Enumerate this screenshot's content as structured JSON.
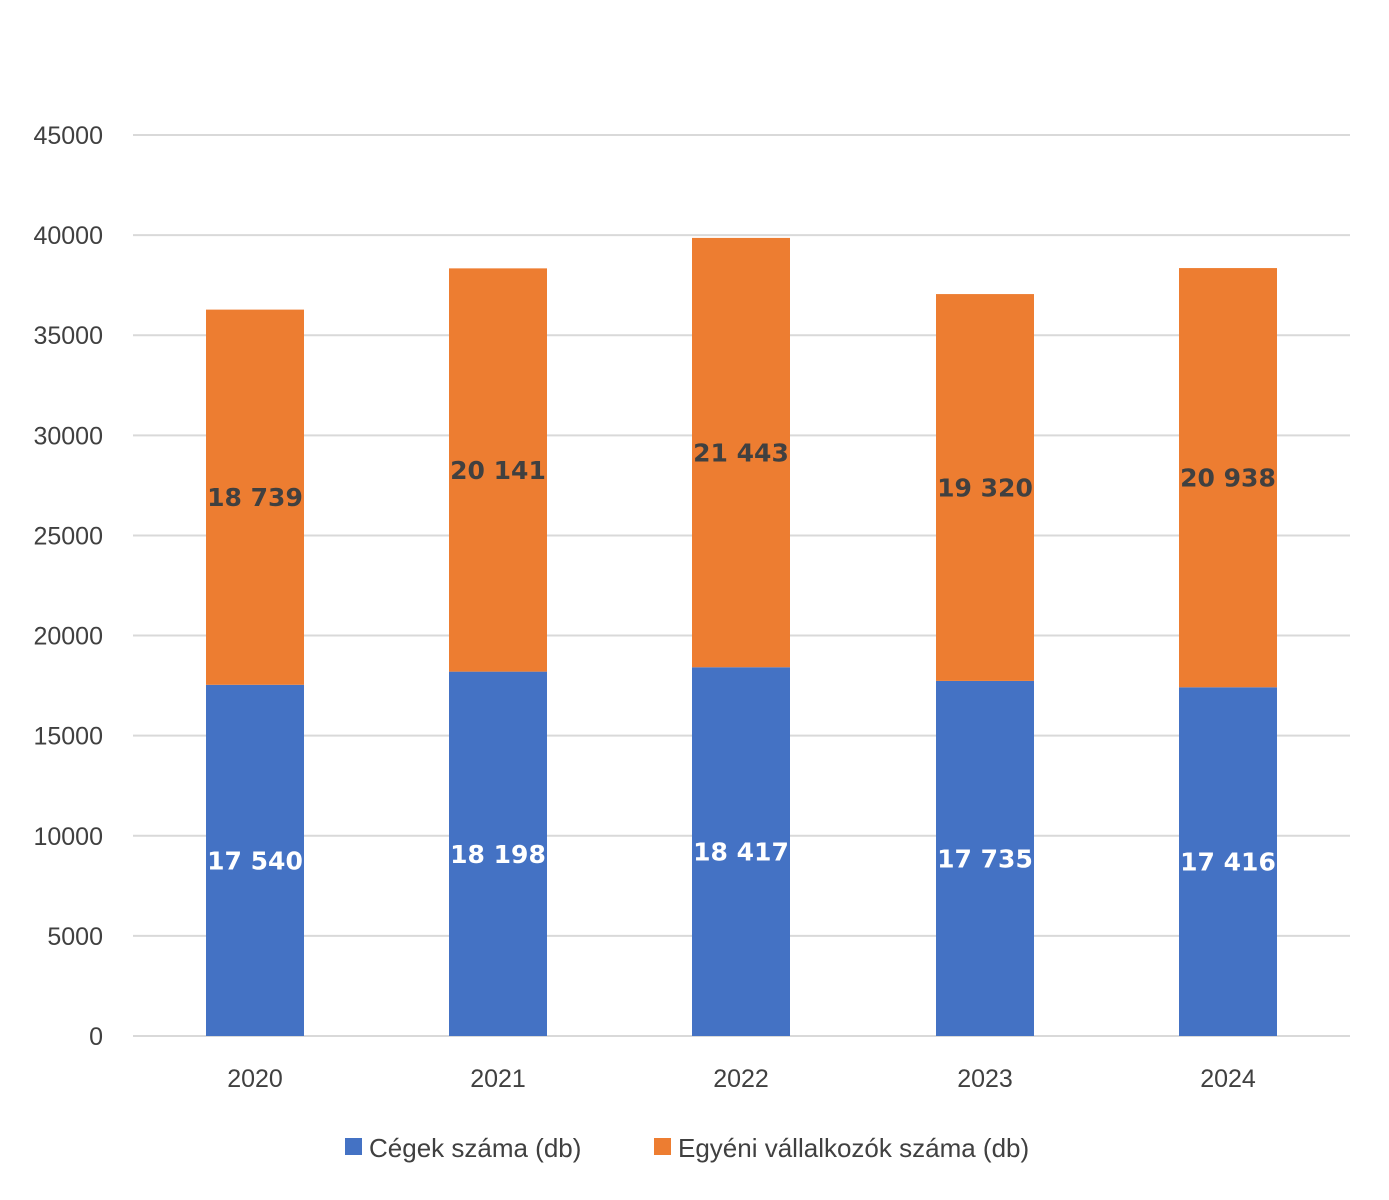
{
  "chart_data": {
    "type": "bar",
    "stacked": true,
    "title": "",
    "xlabel": "",
    "ylabel": "",
    "categories": [
      "2020",
      "2021",
      "2022",
      "2023",
      "2024"
    ],
    "series": [
      {
        "name": "Cégek száma (db)",
        "color": "#4472C4",
        "label_color": "#FFFFFF",
        "values": [
          17540,
          18198,
          18417,
          17735,
          17416
        ],
        "labels": [
          "17 540",
          "18 198",
          "18 417",
          "17 735",
          "17 416"
        ]
      },
      {
        "name": "Egyéni vállalkozók száma (db)",
        "color": "#ED7D31",
        "label_color": "#404040",
        "values": [
          18739,
          20141,
          21443,
          19320,
          20938
        ],
        "labels": [
          "18 739",
          "20 141",
          "21 443",
          "19 320",
          "20 938"
        ]
      }
    ],
    "ylim": [
      0,
      45000
    ],
    "yticks": [
      0,
      5000,
      10000,
      15000,
      20000,
      25000,
      30000,
      35000,
      40000,
      45000
    ],
    "ytick_labels": [
      "0",
      "5000",
      "10000",
      "15000",
      "20000",
      "25000",
      "30000",
      "35000",
      "40000",
      "45000"
    ],
    "grid": true,
    "gridline_color": "#D9D9D9",
    "legend_position": "bottom"
  }
}
